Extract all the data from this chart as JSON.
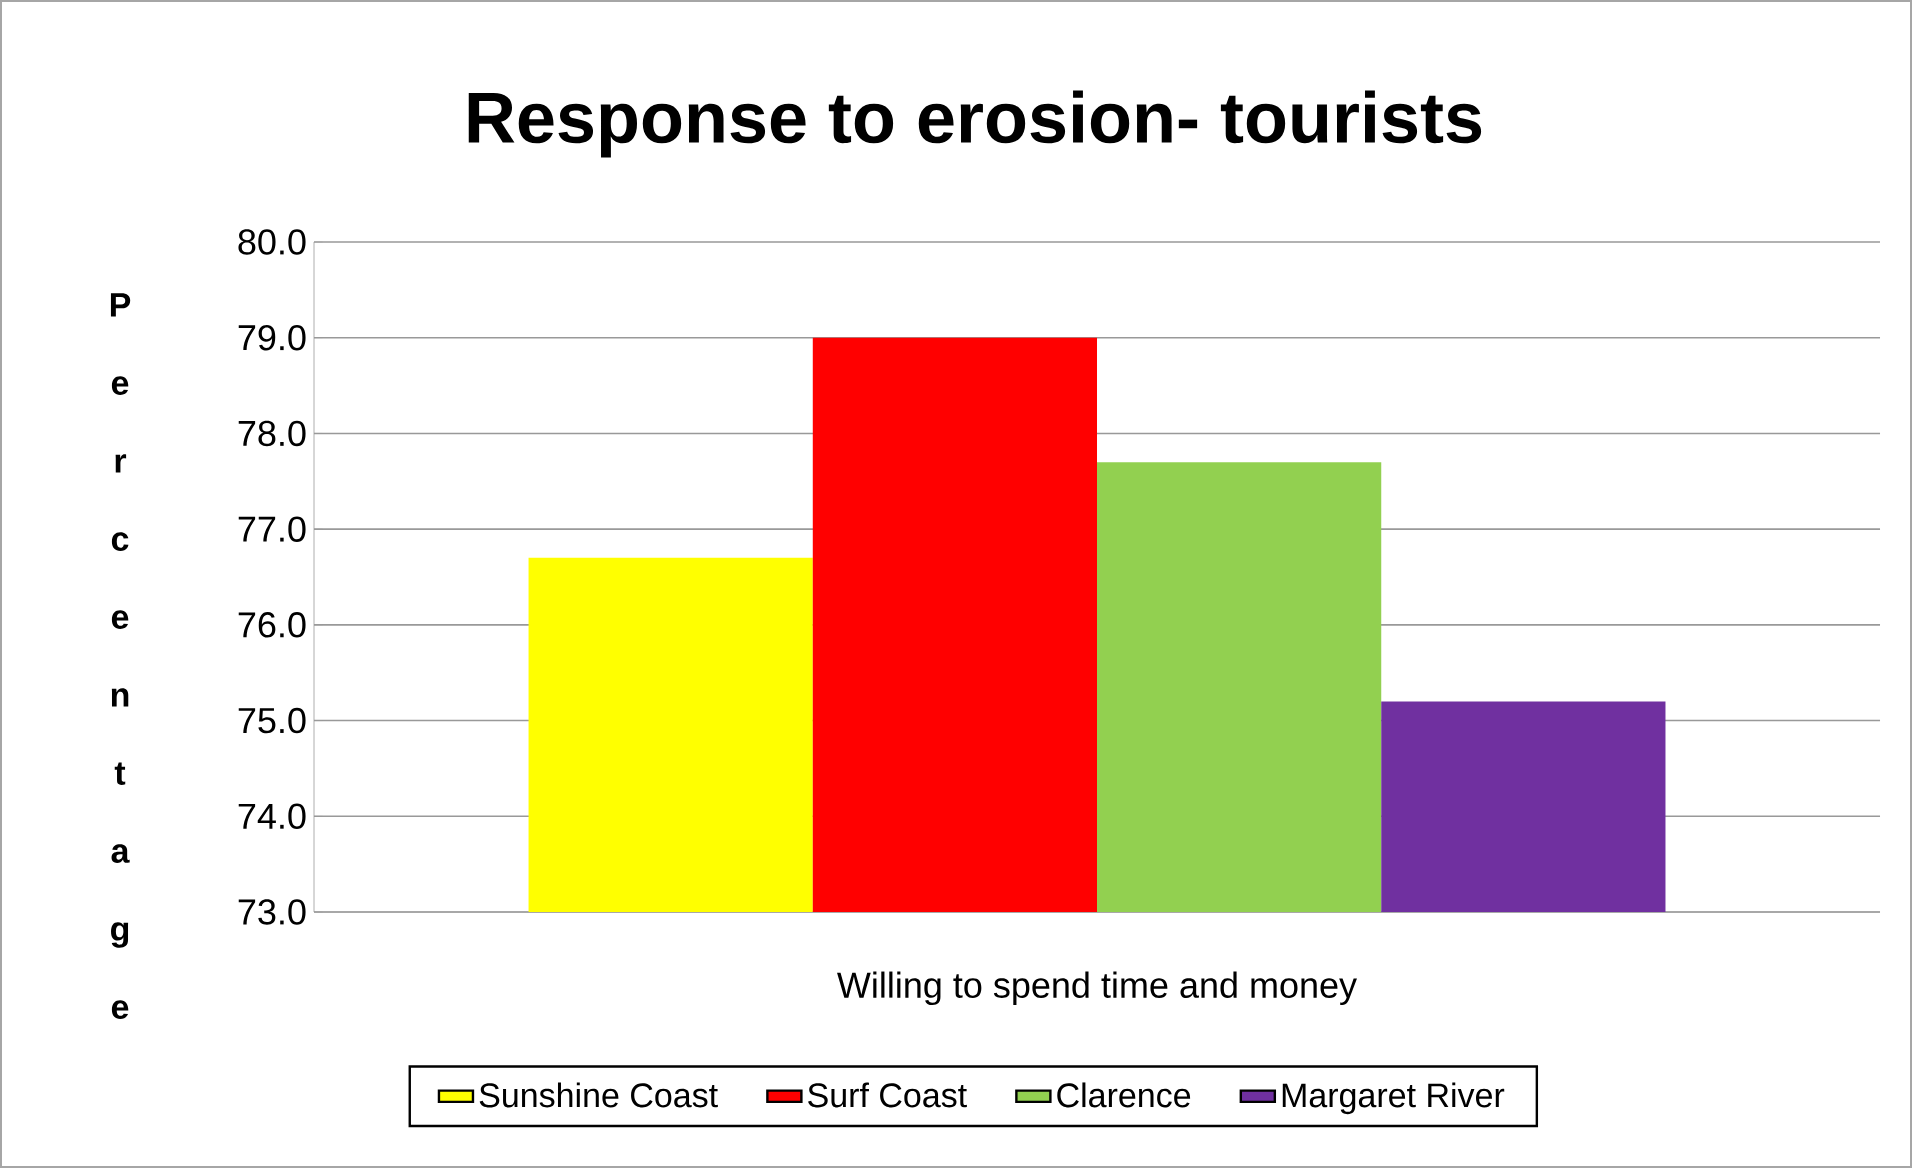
{
  "chart_data": {
    "type": "bar",
    "title": "Response to erosion- tourists",
    "ylabel": "Percentage",
    "categories": [
      "Willing to spend time and money"
    ],
    "series": [
      {
        "name": "Sunshine Coast",
        "color": "#ffff00",
        "values": [
          76.7
        ]
      },
      {
        "name": "Surf Coast",
        "color": "#ff0000",
        "values": [
          79.0
        ]
      },
      {
        "name": "Clarence",
        "color": "#92d050",
        "values": [
          77.7
        ]
      },
      {
        "name": "Margaret River",
        "color": "#7030a0",
        "values": [
          75.2
        ]
      }
    ],
    "ylim": [
      73,
      80
    ],
    "yticks": [
      {
        "value": 73,
        "label": "73.0"
      },
      {
        "value": 74,
        "label": "74.0"
      },
      {
        "value": 75,
        "label": "75.0"
      },
      {
        "value": 76,
        "label": "76.0"
      },
      {
        "value": 77,
        "label": "77.0"
      },
      {
        "value": 78,
        "label": "78.0"
      },
      {
        "value": 79,
        "label": "79.0"
      },
      {
        "value": 80,
        "label": "80.0"
      }
    ],
    "grid": "y",
    "legend": "bottom"
  }
}
